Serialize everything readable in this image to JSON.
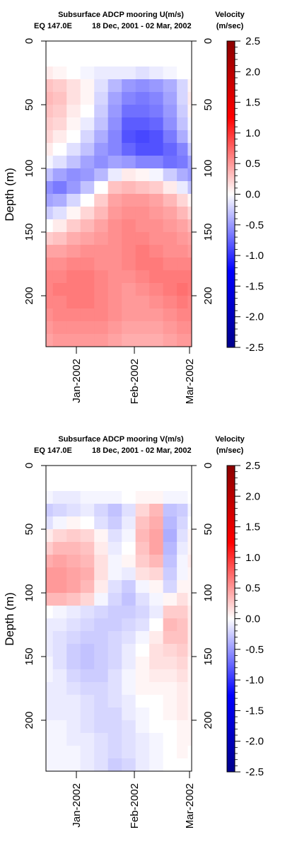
{
  "panels": [
    {
      "title": "Subsurface ADCP mooring U(m/s)",
      "location": "EQ 147.0E",
      "date_range": "18 Dec, 2001 - 02 Mar, 2002",
      "legend_title": "Velocity",
      "legend_unit": "(m/sec)",
      "ylabel": "Depth (m)",
      "y_ticks": [
        "0",
        "50",
        "100",
        "150",
        "200"
      ],
      "x_ticks": [
        "Jan-2002",
        "Feb-2002",
        "Mar-2002"
      ],
      "colorbar_ticks": [
        "2.5",
        "2.0",
        "1.5",
        "1.0",
        "0.5",
        "0.0",
        "-0.5",
        "-1.0",
        "-1.5",
        "-2.0",
        "-2.5"
      ]
    },
    {
      "title": "Subsurface ADCP mooring V(m/s)",
      "location": "EQ 147.0E",
      "date_range": "18 Dec, 2001 - 02 Mar, 2002",
      "legend_title": "Velocity",
      "legend_unit": "(m/sec)",
      "ylabel": "Depth (m)",
      "y_ticks": [
        "0",
        "50",
        "100",
        "150",
        "200"
      ],
      "x_ticks": [
        "Jan-2002",
        "Feb-2002",
        "Mar-2002"
      ],
      "colorbar_ticks": [
        "2.5",
        "2.0",
        "1.5",
        "1.0",
        "0.5",
        "0.0",
        "-0.5",
        "-1.0",
        "-1.5",
        "-2.0",
        "-2.5"
      ]
    }
  ],
  "chart_data": [
    {
      "type": "heatmap",
      "title": "Subsurface ADCP mooring U(m/s)",
      "variable": "U",
      "xlabel": "",
      "ylabel": "Depth (m)",
      "x_range": [
        "2001-12-18",
        "2002-03-02"
      ],
      "ylim": [
        0,
        240
      ],
      "y_inverted": true,
      "color_range": [
        -2.5,
        2.5
      ],
      "colorscale": [
        "#00008b",
        "#0000ff",
        "#ffffff",
        "#ff0000",
        "#8b0000"
      ],
      "depths": [
        25,
        35,
        45,
        55,
        65,
        75,
        85,
        95,
        105,
        115,
        125,
        135,
        145,
        155,
        165,
        175,
        185,
        195,
        205,
        215,
        225,
        235
      ],
      "times": [
        "2001-12-18",
        "2001-12-25",
        "2002-01-01",
        "2002-01-08",
        "2002-01-15",
        "2002-01-22",
        "2002-01-29",
        "2002-02-05",
        "2002-02-12",
        "2002-02-19",
        "2002-02-26",
        "2002-03-02"
      ],
      "values": [
        [
          0.1,
          0.05,
          0.0,
          -0.05,
          -0.1,
          -0.1,
          -0.1,
          -0.15,
          -0.1,
          -0.05,
          0.0,
          0.0
        ],
        [
          0.3,
          0.25,
          0.15,
          0.05,
          -0.15,
          -0.35,
          -0.5,
          -0.55,
          -0.5,
          -0.4,
          -0.2,
          0.05
        ],
        [
          0.35,
          0.3,
          0.15,
          0.05,
          -0.2,
          -0.45,
          -0.6,
          -0.65,
          -0.6,
          -0.45,
          -0.2,
          0.1
        ],
        [
          0.3,
          0.25,
          0.1,
          0.0,
          -0.25,
          -0.5,
          -0.7,
          -0.7,
          -0.65,
          -0.5,
          -0.25,
          0.05
        ],
        [
          0.25,
          0.2,
          0.05,
          -0.1,
          -0.3,
          -0.55,
          -0.8,
          -0.8,
          -0.75,
          -0.55,
          -0.3,
          -0.05
        ],
        [
          0.2,
          0.1,
          0.0,
          -0.2,
          -0.4,
          -0.6,
          -0.85,
          -0.9,
          -0.85,
          -0.65,
          -0.4,
          -0.1
        ],
        [
          0.1,
          0.0,
          -0.15,
          -0.3,
          -0.5,
          -0.6,
          -0.75,
          -0.85,
          -0.85,
          -0.75,
          -0.6,
          -0.25
        ],
        [
          -0.05,
          -0.15,
          -0.3,
          -0.45,
          -0.55,
          -0.45,
          -0.5,
          -0.6,
          -0.6,
          -0.7,
          -0.65,
          -0.45
        ],
        [
          -0.3,
          -0.45,
          -0.55,
          -0.5,
          -0.35,
          -0.1,
          0.1,
          0.05,
          -0.05,
          -0.25,
          -0.4,
          -0.5
        ],
        [
          -0.55,
          -0.65,
          -0.5,
          -0.3,
          0.0,
          0.3,
          0.35,
          0.3,
          0.25,
          0.1,
          -0.1,
          -0.3
        ],
        [
          -0.45,
          -0.4,
          -0.2,
          0.0,
          0.25,
          0.45,
          0.5,
          0.5,
          0.45,
          0.35,
          0.2,
          0.05
        ],
        [
          -0.25,
          -0.15,
          0.05,
          0.2,
          0.35,
          0.5,
          0.55,
          0.55,
          0.5,
          0.45,
          0.35,
          0.2
        ],
        [
          0.0,
          0.1,
          0.25,
          0.35,
          0.45,
          0.55,
          0.6,
          0.55,
          0.55,
          0.5,
          0.45,
          0.35
        ],
        [
          0.25,
          0.3,
          0.4,
          0.45,
          0.5,
          0.55,
          0.6,
          0.6,
          0.55,
          0.55,
          0.5,
          0.45
        ],
        [
          0.45,
          0.45,
          0.5,
          0.55,
          0.55,
          0.55,
          0.6,
          0.65,
          0.6,
          0.55,
          0.55,
          0.5
        ],
        [
          0.55,
          0.55,
          0.6,
          0.6,
          0.55,
          0.55,
          0.6,
          0.65,
          0.65,
          0.6,
          0.6,
          0.6
        ],
        [
          0.6,
          0.6,
          0.65,
          0.65,
          0.6,
          0.55,
          0.55,
          0.6,
          0.65,
          0.65,
          0.65,
          0.65
        ],
        [
          0.6,
          0.65,
          0.65,
          0.65,
          0.6,
          0.55,
          0.5,
          0.55,
          0.6,
          0.65,
          0.7,
          0.65
        ],
        [
          0.6,
          0.6,
          0.65,
          0.65,
          0.6,
          0.55,
          0.5,
          0.5,
          0.55,
          0.6,
          0.65,
          0.6
        ],
        [
          0.55,
          0.6,
          0.6,
          0.6,
          0.6,
          0.55,
          0.5,
          0.5,
          0.5,
          0.55,
          0.6,
          0.6
        ],
        [
          0.5,
          0.55,
          0.55,
          0.55,
          0.55,
          0.5,
          0.45,
          0.45,
          0.45,
          0.5,
          0.55,
          0.55
        ],
        [
          0.45,
          0.5,
          0.5,
          0.5,
          0.5,
          0.45,
          0.4,
          0.4,
          0.4,
          0.45,
          0.5,
          0.5
        ]
      ]
    },
    {
      "type": "heatmap",
      "title": "Subsurface ADCP mooring V(m/s)",
      "variable": "V",
      "xlabel": "",
      "ylabel": "Depth (m)",
      "x_range": [
        "2001-12-18",
        "2002-03-02"
      ],
      "ylim": [
        0,
        240
      ],
      "y_inverted": true,
      "color_range": [
        -2.5,
        2.5
      ],
      "colorscale": [
        "#00008b",
        "#0000ff",
        "#ffffff",
        "#ff0000",
        "#8b0000"
      ],
      "depths": [
        25,
        35,
        45,
        55,
        65,
        75,
        85,
        95,
        105,
        115,
        125,
        135,
        145,
        155,
        165,
        175,
        185,
        195,
        205,
        215,
        225,
        235
      ],
      "times": [
        "2001-12-18",
        "2001-12-25",
        "2002-01-01",
        "2002-01-08",
        "2002-01-15",
        "2002-01-22",
        "2002-01-29",
        "2002-02-05",
        "2002-02-12",
        "2002-02-19",
        "2002-02-26",
        "2002-03-02"
      ],
      "values": [
        [
          -0.05,
          -0.1,
          -0.1,
          -0.05,
          -0.05,
          -0.05,
          0.0,
          0.05,
          0.05,
          -0.05,
          -0.05,
          0.0
        ],
        [
          -0.25,
          -0.2,
          -0.15,
          -0.1,
          -0.2,
          -0.3,
          -0.15,
          0.2,
          0.35,
          -0.3,
          -0.25,
          -0.05
        ],
        [
          -0.15,
          -0.05,
          0.05,
          0.0,
          -0.15,
          -0.25,
          -0.1,
          0.3,
          0.4,
          -0.35,
          -0.2,
          0.0
        ],
        [
          0.1,
          0.2,
          0.25,
          0.2,
          0.05,
          -0.15,
          -0.05,
          0.35,
          0.45,
          -0.4,
          -0.15,
          0.05
        ],
        [
          0.25,
          0.35,
          0.35,
          0.3,
          0.1,
          -0.1,
          0.0,
          0.3,
          0.45,
          -0.35,
          -0.1,
          0.05
        ],
        [
          0.4,
          0.45,
          0.4,
          0.35,
          0.15,
          -0.05,
          0.05,
          0.25,
          0.35,
          -0.3,
          -0.05,
          0.1
        ],
        [
          0.5,
          0.5,
          0.45,
          0.4,
          0.15,
          -0.05,
          -0.1,
          0.15,
          0.2,
          -0.25,
          -0.05,
          0.05
        ],
        [
          0.5,
          0.5,
          0.45,
          0.35,
          0.1,
          -0.15,
          -0.25,
          -0.05,
          0.05,
          -0.2,
          0.05,
          0.05
        ],
        [
          0.35,
          0.35,
          0.3,
          0.2,
          -0.05,
          -0.2,
          -0.3,
          -0.15,
          -0.05,
          0.05,
          0.15,
          0.05
        ],
        [
          0.0,
          -0.05,
          -0.1,
          -0.15,
          -0.2,
          -0.25,
          -0.25,
          -0.2,
          -0.1,
          0.25,
          0.25,
          0.1
        ],
        [
          -0.1,
          -0.1,
          -0.15,
          -0.2,
          -0.25,
          -0.25,
          -0.2,
          -0.15,
          0.0,
          0.35,
          0.3,
          0.1
        ],
        [
          -0.1,
          -0.15,
          -0.2,
          -0.25,
          -0.25,
          -0.2,
          -0.15,
          -0.05,
          0.1,
          0.3,
          0.3,
          0.1
        ],
        [
          -0.1,
          -0.15,
          -0.25,
          -0.3,
          -0.25,
          -0.2,
          -0.1,
          0.0,
          0.15,
          0.2,
          0.25,
          0.1
        ],
        [
          -0.05,
          -0.15,
          -0.25,
          -0.3,
          -0.25,
          -0.2,
          -0.1,
          0.05,
          0.15,
          0.15,
          0.2,
          0.05
        ],
        [
          -0.05,
          -0.1,
          -0.2,
          -0.25,
          -0.25,
          -0.15,
          -0.05,
          0.05,
          0.1,
          0.1,
          0.15,
          0.05
        ],
        [
          -0.1,
          -0.1,
          -0.15,
          -0.2,
          -0.2,
          -0.15,
          -0.05,
          0.05,
          0.05,
          0.05,
          0.1,
          0.05
        ],
        [
          -0.1,
          -0.1,
          -0.1,
          -0.15,
          -0.2,
          -0.15,
          -0.1,
          0.0,
          0.0,
          0.05,
          0.1,
          0.05
        ],
        [
          -0.1,
          -0.1,
          -0.1,
          -0.15,
          -0.2,
          -0.2,
          -0.1,
          -0.05,
          0.0,
          0.05,
          0.1,
          0.05
        ],
        [
          -0.05,
          -0.05,
          -0.1,
          -0.15,
          -0.2,
          -0.2,
          -0.15,
          -0.05,
          0.0,
          0.0,
          0.05,
          0.05
        ],
        [
          -0.05,
          -0.05,
          -0.1,
          -0.1,
          -0.15,
          -0.2,
          -0.15,
          -0.1,
          -0.05,
          0.0,
          0.05,
          0.05
        ],
        [
          -0.05,
          -0.05,
          -0.05,
          -0.1,
          -0.15,
          -0.2,
          -0.15,
          -0.1,
          -0.05,
          0.0,
          0.05,
          0.0
        ],
        [
          -0.05,
          -0.05,
          -0.05,
          -0.1,
          -0.15,
          -0.25,
          -0.2,
          -0.1,
          -0.05,
          0.0,
          0.0,
          0.0
        ]
      ]
    }
  ]
}
